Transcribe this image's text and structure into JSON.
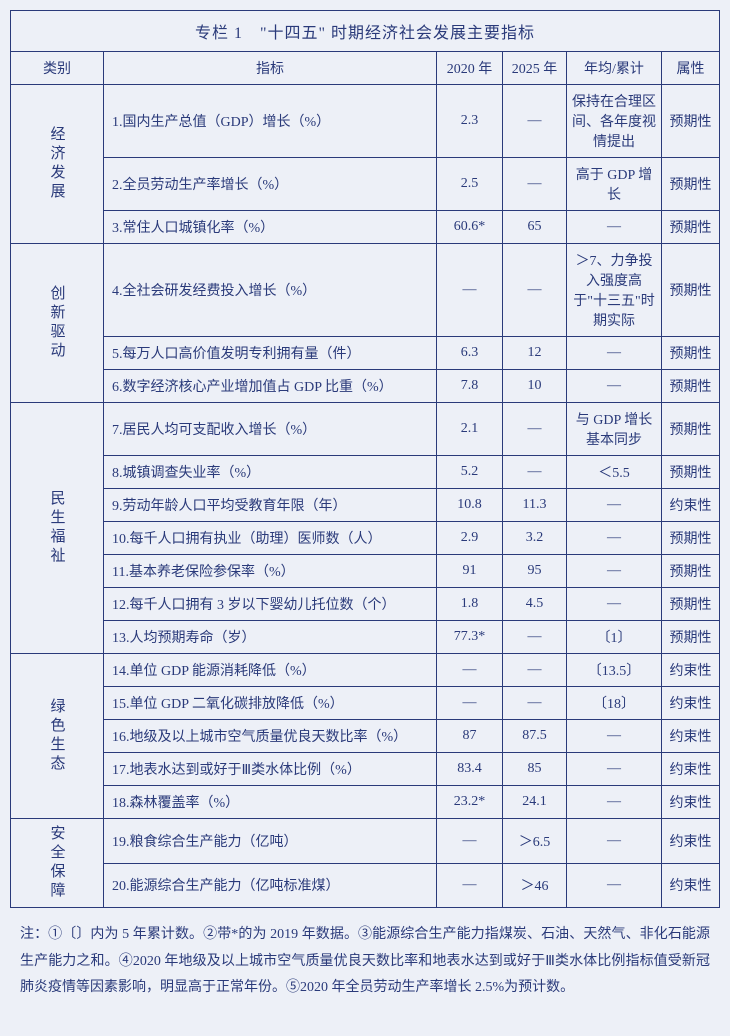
{
  "title": "专栏 1　\"十四五\" 时期经济社会发展主要指标",
  "headers": {
    "category": "类别",
    "indicator": "指标",
    "y2020": "2020 年",
    "y2025": "2025 年",
    "avg": "年均/累计",
    "attr": "属性"
  },
  "groups": [
    {
      "category": "经济发展",
      "rows": [
        {
          "ind": "1.国内生产总值（GDP）增长（%）",
          "y20": "2.3",
          "y25": "—",
          "avg": "保持在合理区间、各年度视情提出",
          "attr": "预期性"
        },
        {
          "ind": "2.全员劳动生产率增长（%）",
          "y20": "2.5",
          "y25": "—",
          "avg": "高于 GDP 增长",
          "attr": "预期性"
        },
        {
          "ind": "3.常住人口城镇化率（%）",
          "y20": "60.6*",
          "y25": "65",
          "avg": "—",
          "attr": "预期性"
        }
      ]
    },
    {
      "category": "创新驱动",
      "rows": [
        {
          "ind": "4.全社会研发经费投入增长（%）",
          "y20": "—",
          "y25": "—",
          "avg": "＞7、力争投入强度高于\"十三五\"时期实际",
          "attr": "预期性"
        },
        {
          "ind": "5.每万人口高价值发明专利拥有量（件）",
          "y20": "6.3",
          "y25": "12",
          "avg": "—",
          "attr": "预期性"
        },
        {
          "ind": "6.数字经济核心产业增加值占 GDP 比重（%）",
          "y20": "7.8",
          "y25": "10",
          "avg": "—",
          "attr": "预期性"
        }
      ]
    },
    {
      "category": "民生福祉",
      "rows": [
        {
          "ind": "7.居民人均可支配收入增长（%）",
          "y20": "2.1",
          "y25": "—",
          "avg": "与 GDP 增长基本同步",
          "attr": "预期性"
        },
        {
          "ind": "8.城镇调查失业率（%）",
          "y20": "5.2",
          "y25": "—",
          "avg": "＜5.5",
          "attr": "预期性"
        },
        {
          "ind": "9.劳动年龄人口平均受教育年限（年）",
          "y20": "10.8",
          "y25": "11.3",
          "avg": "—",
          "attr": "约束性"
        },
        {
          "ind": "10.每千人口拥有执业（助理）医师数（人）",
          "y20": "2.9",
          "y25": "3.2",
          "avg": "—",
          "attr": "预期性"
        },
        {
          "ind": "11.基本养老保险参保率（%）",
          "y20": "91",
          "y25": "95",
          "avg": "—",
          "attr": "预期性"
        },
        {
          "ind": "12.每千人口拥有 3 岁以下婴幼儿托位数（个）",
          "y20": "1.8",
          "y25": "4.5",
          "avg": "—",
          "attr": "预期性"
        },
        {
          "ind": "13.人均预期寿命（岁）",
          "y20": "77.3*",
          "y25": "—",
          "avg": "〔1〕",
          "attr": "预期性"
        }
      ]
    },
    {
      "category": "绿色生态",
      "rows": [
        {
          "ind": "14.单位 GDP 能源消耗降低（%）",
          "y20": "—",
          "y25": "—",
          "avg": "〔13.5〕",
          "attr": "约束性"
        },
        {
          "ind": "15.单位 GDP 二氧化碳排放降低（%）",
          "y20": "—",
          "y25": "—",
          "avg": "〔18〕",
          "attr": "约束性"
        },
        {
          "ind": "16.地级及以上城市空气质量优良天数比率（%）",
          "y20": "87",
          "y25": "87.5",
          "avg": "—",
          "attr": "约束性"
        },
        {
          "ind": "17.地表水达到或好于Ⅲ类水体比例（%）",
          "y20": "83.4",
          "y25": "85",
          "avg": "—",
          "attr": "约束性"
        },
        {
          "ind": "18.森林覆盖率（%）",
          "y20": "23.2*",
          "y25": "24.1",
          "avg": "—",
          "attr": "约束性"
        }
      ]
    },
    {
      "category": "安全保障",
      "rows": [
        {
          "ind": "19.粮食综合生产能力（亿吨）",
          "y20": "—",
          "y25": "＞6.5",
          "avg": "—",
          "attr": "约束性"
        },
        {
          "ind": "20.能源综合生产能力（亿吨标准煤）",
          "y20": "—",
          "y25": "＞46",
          "avg": "—",
          "attr": "约束性"
        }
      ]
    }
  ],
  "note": "注：①〔〕内为 5 年累计数。②带*的为 2019 年数据。③能源综合生产能力指煤炭、石油、天然气、非化石能源生产能力之和。④2020 年地级及以上城市空气质量优良天数比率和地表水达到或好于Ⅲ类水体比例指标值受新冠肺炎疫情等因素影响，明显高于正常年份。⑤2020 年全员劳动生产率增长 2.5%为预计数。"
}
